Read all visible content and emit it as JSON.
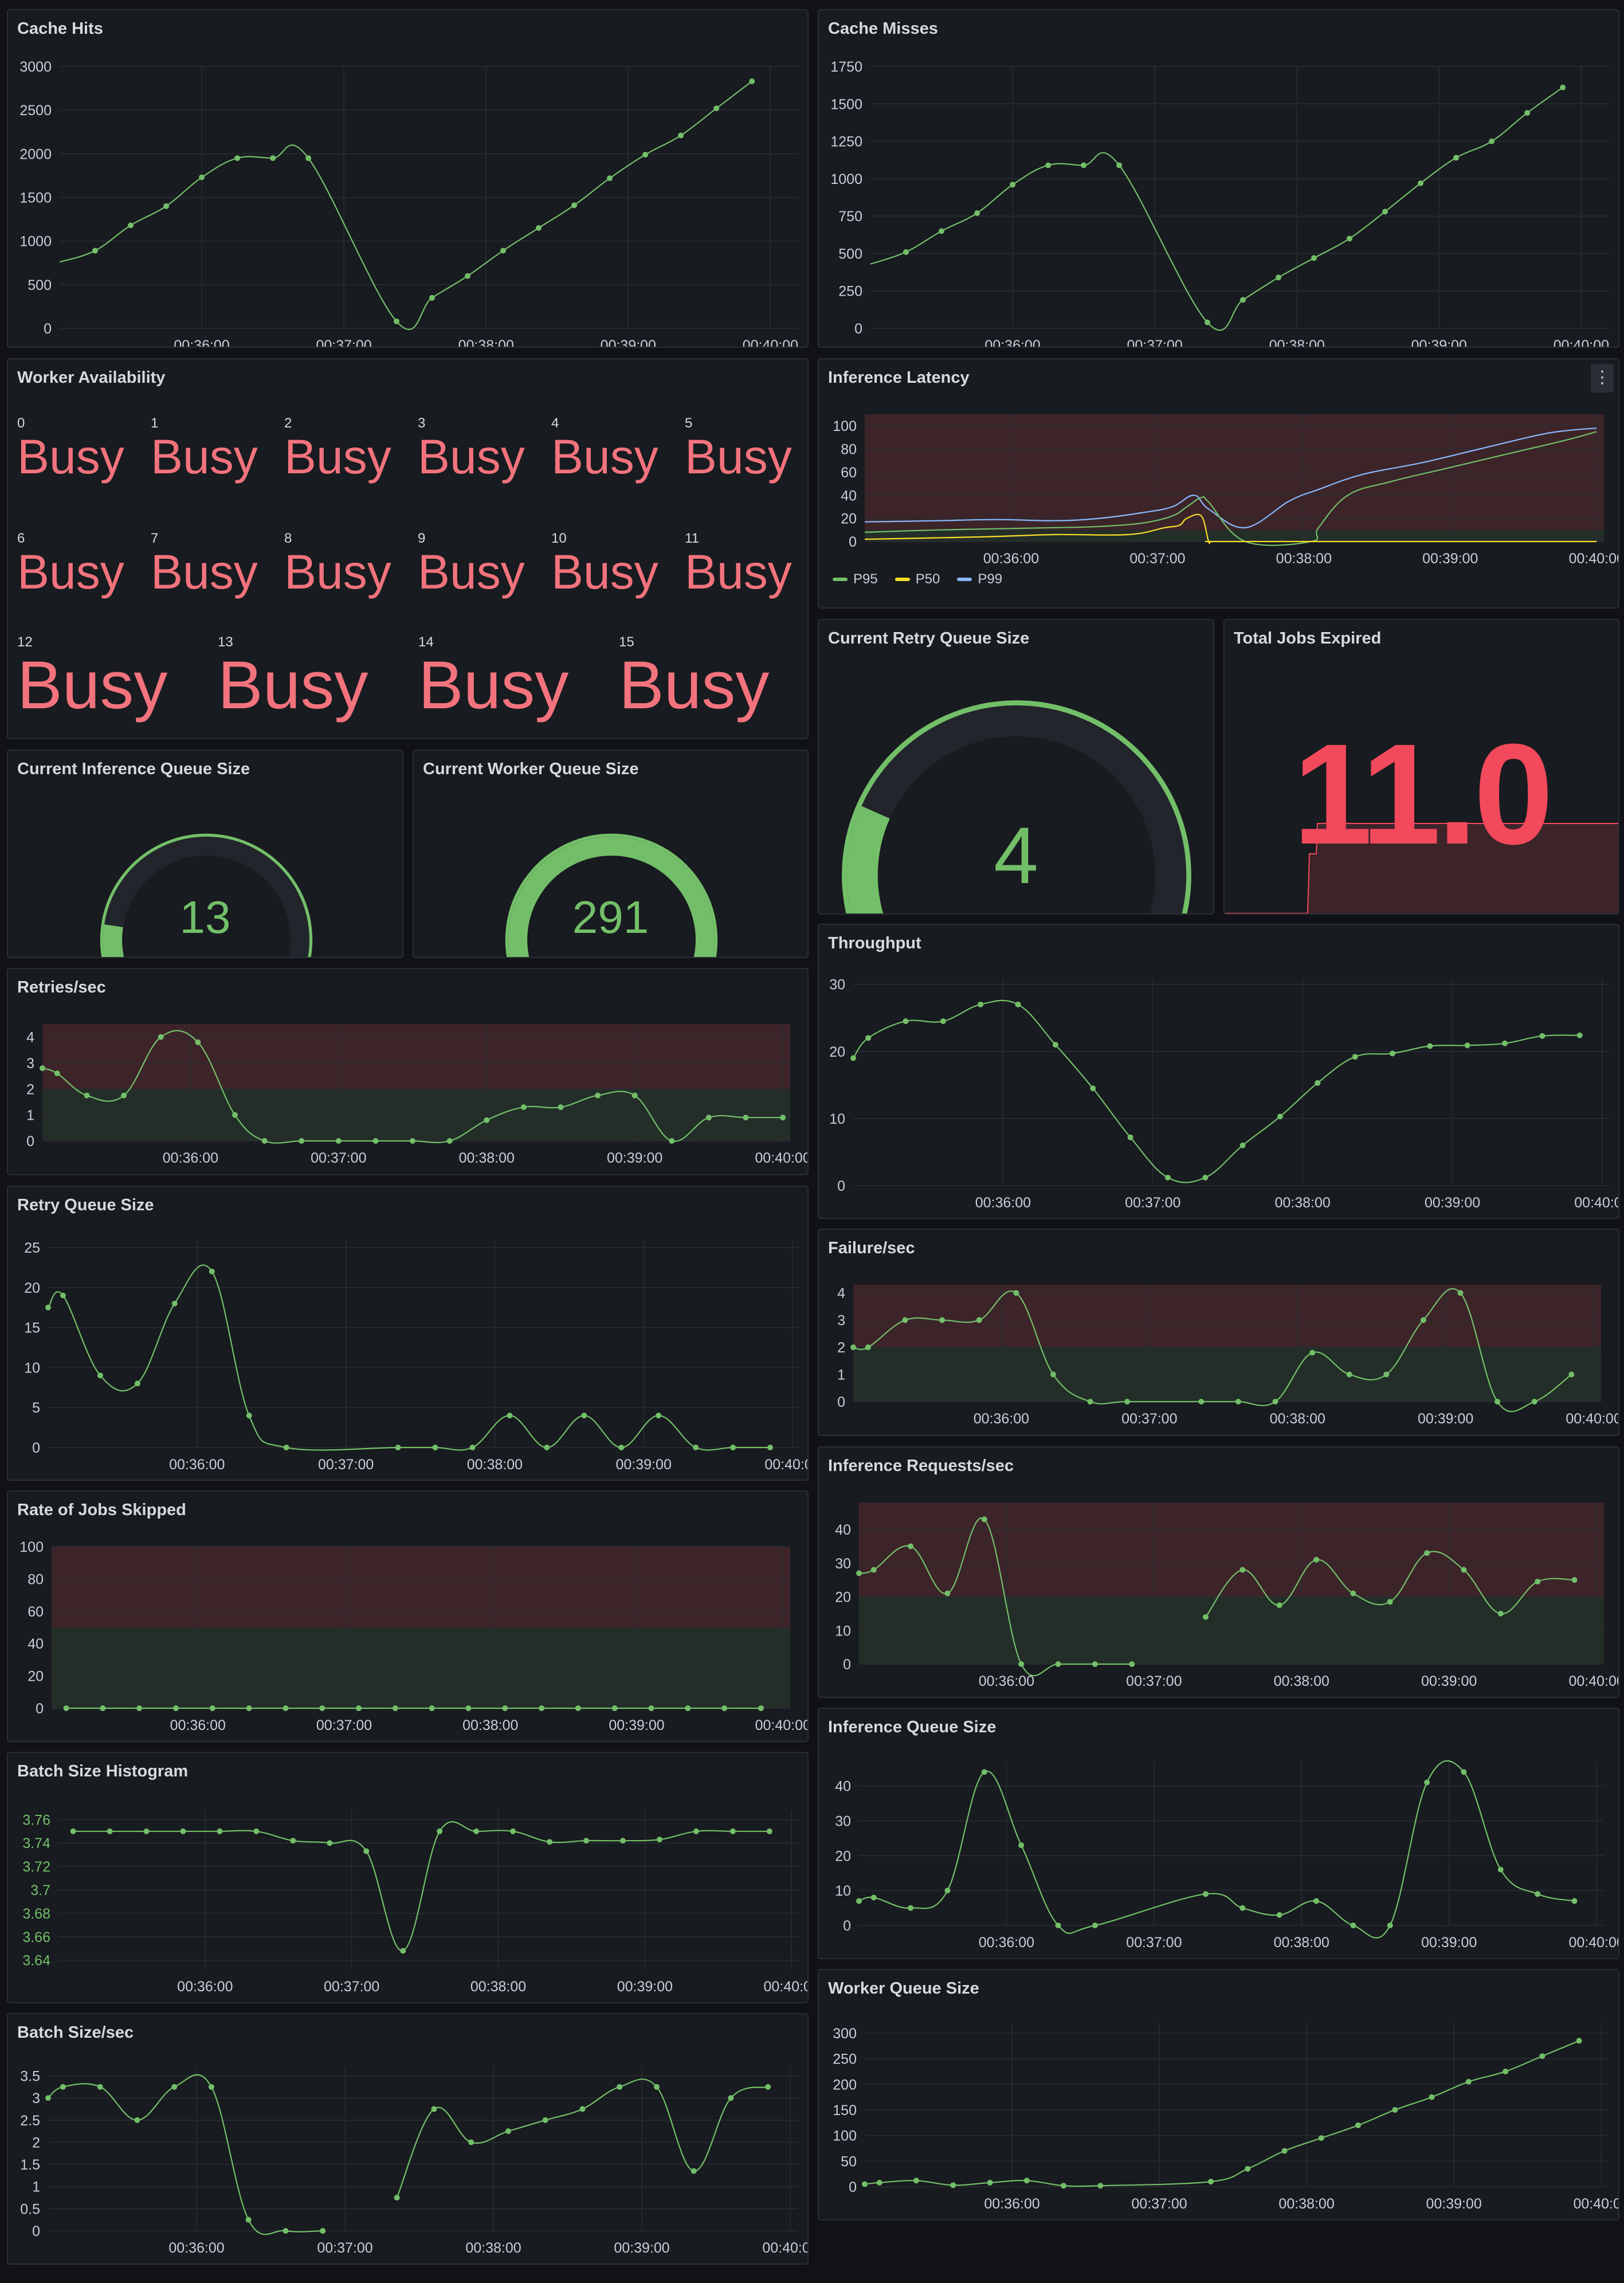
{
  "colors": {
    "green": "#73bf69",
    "red": "#f2495c",
    "busy": "#f2737d",
    "yellow": "#fade2a",
    "blue": "#8ab8ff",
    "purple": "#b7b1f5",
    "red_band": "#3d2429",
    "green_band": "#232e28",
    "track": "#22252b"
  },
  "x_ticks": [
    "00:36:00",
    "00:37:00",
    "00:38:00",
    "00:39:00",
    "00:40:00"
  ],
  "panels": {
    "cache_hits": {
      "title": "Cache Hits"
    },
    "cache_misses": {
      "title": "Cache Misses"
    },
    "worker_availability": {
      "title": "Worker Availability",
      "workers": [
        {
          "id": "0",
          "status": "Busy"
        },
        {
          "id": "1",
          "status": "Busy"
        },
        {
          "id": "2",
          "status": "Busy"
        },
        {
          "id": "3",
          "status": "Busy"
        },
        {
          "id": "4",
          "status": "Busy"
        },
        {
          "id": "5",
          "status": "Busy"
        },
        {
          "id": "6",
          "status": "Busy"
        },
        {
          "id": "7",
          "status": "Busy"
        },
        {
          "id": "8",
          "status": "Busy"
        },
        {
          "id": "9",
          "status": "Busy"
        },
        {
          "id": "10",
          "status": "Busy"
        },
        {
          "id": "11",
          "status": "Busy"
        },
        {
          "id": "12",
          "status": "Busy"
        },
        {
          "id": "13",
          "status": "Busy"
        },
        {
          "id": "14",
          "status": "Busy"
        },
        {
          "id": "15",
          "status": "Busy"
        }
      ]
    },
    "inference_latency": {
      "title": "Inference Latency",
      "menu_icon": "kebab-menu-icon",
      "legend": [
        "P95",
        "P50",
        "P99"
      ]
    },
    "inference_queue_gauge": {
      "title": "Current Inference Queue Size",
      "value": "13"
    },
    "worker_queue_gauge": {
      "title": "Current Worker Queue Size",
      "value": "291"
    },
    "retry_queue_gauge": {
      "title": "Current Retry Queue Size",
      "value": "4"
    },
    "total_jobs_expired": {
      "title": "Total Jobs Expired",
      "value": "11.0"
    },
    "retries_sec": {
      "title": "Retries/sec"
    },
    "throughput": {
      "title": "Throughput"
    },
    "retry_queue_size": {
      "title": "Retry Queue Size"
    },
    "failure_sec": {
      "title": "Failure/sec"
    },
    "rate_jobs_skipped": {
      "title": "Rate of Jobs Skipped"
    },
    "inference_requests_sec": {
      "title": "Inference Requests/sec"
    },
    "batch_size_histogram": {
      "title": "Batch Size Histogram"
    },
    "inference_queue_size": {
      "title": "Inference Queue Size"
    },
    "batch_size_sec": {
      "title": "Batch Size/sec"
    },
    "worker_queue_size": {
      "title": "Worker Queue Size"
    }
  },
  "chart_data": [
    {
      "id": "cache_hits",
      "type": "line",
      "title": "Cache Hits",
      "ylim": [
        0,
        3000
      ],
      "yticks": [
        "0",
        "500",
        "1000",
        "1500",
        "2000",
        "2500",
        "3000"
      ],
      "xlim": [
        0,
        5.2
      ],
      "x": [
        0.25,
        0.5,
        0.75,
        1.0,
        1.25,
        1.5,
        1.75,
        2.37,
        2.62,
        2.87,
        3.12,
        3.37,
        3.62,
        3.87,
        4.12,
        4.37,
        4.62,
        4.87
      ],
      "values": [
        890,
        1180,
        1400,
        1730,
        1950,
        1950,
        1950,
        80,
        350,
        600,
        890,
        1150,
        1410,
        1720,
        1990,
        2210,
        2520,
        2830
      ],
      "start": 760
    },
    {
      "id": "cache_misses",
      "type": "line",
      "title": "Cache Misses",
      "ylim": [
        0,
        1750
      ],
      "yticks": [
        "0",
        "250",
        "500",
        "750",
        "1000",
        "1250",
        "1500",
        "1750"
      ],
      "xlim": [
        0,
        5.2
      ],
      "x": [
        0.25,
        0.5,
        0.75,
        1.0,
        1.25,
        1.5,
        1.75,
        2.37,
        2.62,
        2.87,
        3.12,
        3.37,
        3.62,
        3.87,
        4.12,
        4.37,
        4.62,
        4.87
      ],
      "values": [
        510,
        650,
        770,
        960,
        1090,
        1090,
        1090,
        40,
        190,
        340,
        470,
        600,
        780,
        970,
        1140,
        1250,
        1440,
        1610
      ],
      "start": 430
    },
    {
      "id": "inference_latency",
      "type": "line",
      "title": "Inference Latency",
      "ylim": [
        0,
        110
      ],
      "yticks": [
        "0",
        "20",
        "40",
        "60",
        "80",
        "100"
      ],
      "xlim": [
        0,
        5.05
      ],
      "thresholds": [
        {
          "from": 0,
          "to": 10,
          "color": "green_band"
        },
        {
          "from": 10,
          "to": 110,
          "color": "red_band"
        }
      ],
      "series": [
        {
          "name": "P99",
          "color": "blue",
          "x": [
            0,
            0.5,
            0.9,
            1.3,
            1.6,
            1.9,
            2.1,
            2.25,
            2.35,
            2.6,
            2.9,
            3.1,
            3.4,
            3.8,
            4.2,
            4.6,
            4.8,
            5.0
          ],
          "values": [
            17,
            18,
            19,
            18,
            20,
            25,
            30,
            40,
            28,
            12,
            35,
            45,
            58,
            68,
            80,
            92,
            96,
            98
          ]
        },
        {
          "name": "P95",
          "color": "green",
          "x": [
            0,
            0.5,
            0.9,
            1.3,
            1.6,
            1.9,
            2.1,
            2.2,
            2.3,
            2.35,
            2.6,
            3.05,
            3.1,
            3.3,
            3.6,
            4.0,
            4.4,
            4.8,
            5.0
          ],
          "values": [
            8,
            10,
            11,
            12,
            13,
            16,
            22,
            30,
            38,
            34,
            0,
            0,
            12,
            40,
            52,
            64,
            76,
            88,
            95
          ]
        },
        {
          "name": "P50",
          "color": "yellow",
          "x": [
            0,
            0.8,
            1.3,
            1.8,
            2.05,
            2.15,
            2.2,
            2.3,
            2.35,
            2.38,
            2.6,
            5.0
          ],
          "values": [
            2,
            4,
            6,
            6,
            12,
            14,
            20,
            22,
            0,
            0,
            0,
            0
          ]
        }
      ]
    },
    {
      "id": "retries_sec",
      "type": "line",
      "title": "Retries/sec",
      "ylim": [
        0,
        4.5
      ],
      "yticks": [
        "0",
        "1",
        "2",
        "3",
        "4"
      ],
      "xlim": [
        0,
        5.05
      ],
      "thresholds": [
        {
          "from": 0,
          "to": 2,
          "color": "green_band"
        },
        {
          "from": 2,
          "to": 4.5,
          "color": "red_band"
        }
      ],
      "x": [
        0.0,
        0.1,
        0.3,
        0.55,
        0.8,
        1.05,
        1.3,
        1.5,
        1.75,
        2.0,
        2.25,
        2.5,
        2.75,
        3.0,
        3.25,
        3.5,
        3.75,
        4.0,
        4.25,
        4.5,
        4.75,
        5.0
      ],
      "values": [
        2.8,
        2.6,
        1.75,
        1.75,
        4.0,
        3.8,
        1.0,
        0,
        0,
        0,
        0,
        0,
        0,
        0.8,
        1.3,
        1.3,
        1.75,
        1.75,
        0,
        0.9,
        0.9,
        0.9
      ]
    },
    {
      "id": "throughput",
      "type": "line",
      "title": "Throughput",
      "ylim": [
        0,
        31
      ],
      "yticks": [
        "0",
        "10",
        "20",
        "30"
      ],
      "xlim": [
        0,
        5.05
      ],
      "x": [
        0.0,
        0.1,
        0.35,
        0.6,
        0.85,
        1.1,
        1.35,
        1.6,
        1.85,
        2.1,
        2.35,
        2.6,
        2.85,
        3.1,
        3.35,
        3.6,
        3.85,
        4.1,
        4.35,
        4.6,
        4.85
      ],
      "values": [
        19,
        22,
        24.5,
        24.5,
        27,
        27,
        21,
        14.5,
        7.2,
        1.2,
        1.2,
        6,
        10.3,
        15.3,
        19.2,
        19.7,
        20.8,
        20.9,
        21.2,
        22.3,
        22.4
      ]
    },
    {
      "id": "retry_queue_size",
      "type": "line",
      "title": "Retry Queue Size",
      "ylim": [
        0,
        26
      ],
      "yticks": [
        "0",
        "5",
        "10",
        "15",
        "20",
        "25"
      ],
      "xlim": [
        0,
        5.05
      ],
      "x": [
        0.0,
        0.1,
        0.35,
        0.6,
        0.85,
        1.1,
        1.35,
        1.6,
        2.35,
        2.6,
        2.85,
        3.1,
        3.35,
        3.6,
        3.85,
        4.1,
        4.35,
        4.6,
        4.85
      ],
      "values": [
        17.5,
        19,
        9,
        8,
        18,
        22,
        4,
        0,
        0,
        0,
        0,
        4,
        0,
        4,
        0,
        4,
        0,
        0,
        0
      ]
    },
    {
      "id": "failure_sec",
      "type": "line",
      "title": "Failure/sec",
      "ylim": [
        0,
        4.3
      ],
      "yticks": [
        "0",
        "1",
        "2",
        "3",
        "4"
      ],
      "xlim": [
        0,
        5.05
      ],
      "thresholds": [
        {
          "from": 0,
          "to": 2,
          "color": "green_band"
        },
        {
          "from": 2,
          "to": 4.3,
          "color": "red_band"
        }
      ],
      "x": [
        0.0,
        0.1,
        0.35,
        0.6,
        0.85,
        1.1,
        1.35,
        1.6,
        1.85,
        2.35,
        2.6,
        2.85,
        3.1,
        3.35,
        3.6,
        3.85,
        4.1,
        4.35,
        4.6,
        4.85
      ],
      "values": [
        2,
        2,
        3,
        3,
        3,
        4,
        1,
        0,
        0,
        0,
        0,
        0,
        1.8,
        1,
        1,
        3,
        4,
        0,
        0,
        1
      ]
    },
    {
      "id": "rate_jobs_skipped",
      "type": "line",
      "title": "Rate of Jobs Skipped",
      "ylim": [
        0,
        100
      ],
      "yticks": [
        "0",
        "20",
        "40",
        "60",
        "80",
        "100"
      ],
      "xlim": [
        0,
        5.05
      ],
      "thresholds": [
        {
          "from": 0,
          "to": 50,
          "color": "green_band"
        },
        {
          "from": 50,
          "to": 100,
          "color": "red_band"
        }
      ],
      "x": [
        0.1,
        0.35,
        0.6,
        0.85,
        1.1,
        1.35,
        1.6,
        1.85,
        2.1,
        2.35,
        2.6,
        2.85,
        3.1,
        3.35,
        3.6,
        3.85,
        4.1,
        4.35,
        4.6,
        4.85
      ],
      "values": [
        0,
        0,
        0,
        0,
        0,
        0,
        0,
        0,
        0,
        0,
        0,
        0,
        0,
        0,
        0,
        0,
        0,
        0,
        0,
        0
      ]
    },
    {
      "id": "inference_requests_sec",
      "type": "line",
      "title": "Inference Requests/sec",
      "ylim": [
        0,
        48
      ],
      "yticks": [
        "0",
        "10",
        "20",
        "30",
        "40"
      ],
      "xlim": [
        0,
        5.05
      ],
      "thresholds": [
        {
          "from": 0,
          "to": 20,
          "color": "green_band"
        },
        {
          "from": 20,
          "to": 48,
          "color": "red_band"
        }
      ],
      "segments": [
        {
          "x": [
            0.0,
            0.1,
            0.35,
            0.6,
            0.85,
            1.1,
            1.35,
            1.6,
            1.85
          ],
          "values": [
            27,
            28,
            35,
            21,
            43,
            0,
            0,
            0,
            0
          ]
        },
        {
          "x": [
            2.35,
            2.6,
            2.85,
            3.1,
            3.35,
            3.6,
            3.85,
            4.1,
            4.35,
            4.6,
            4.85
          ],
          "values": [
            14,
            28,
            17.5,
            31,
            21,
            18.5,
            33,
            28,
            15,
            24.5,
            25
          ]
        }
      ]
    },
    {
      "id": "batch_size_histogram",
      "type": "line",
      "title": "Batch Size Histogram",
      "ylim": [
        3.632,
        3.768
      ],
      "yticks": [
        "3.64",
        "3.66",
        "3.68",
        "3.7",
        "3.72",
        "3.74",
        "3.76"
      ],
      "xlim": [
        0,
        5.05
      ],
      "x": [
        0.1,
        0.35,
        0.6,
        0.85,
        1.1,
        1.35,
        1.6,
        1.85,
        2.1,
        2.35,
        2.6,
        2.85,
        3.1,
        3.35,
        3.6,
        3.85,
        4.1,
        4.35,
        4.6,
        4.85
      ],
      "values": [
        3.75,
        3.75,
        3.75,
        3.75,
        3.75,
        3.75,
        3.742,
        3.74,
        3.733,
        3.648,
        3.75,
        3.75,
        3.75,
        3.741,
        3.742,
        3.742,
        3.743,
        3.75,
        3.75,
        3.75
      ]
    },
    {
      "id": "inference_queue_size",
      "type": "line",
      "title": "Inference Queue Size",
      "ylim": [
        0,
        47
      ],
      "yticks": [
        "0",
        "10",
        "20",
        "30",
        "40"
      ],
      "xlim": [
        0,
        5.05
      ],
      "x": [
        0.0,
        0.1,
        0.35,
        0.6,
        0.85,
        1.1,
        1.35,
        1.6,
        2.35,
        2.6,
        2.85,
        3.1,
        3.35,
        3.6,
        3.85,
        4.1,
        4.35,
        4.6,
        4.85
      ],
      "values": [
        7,
        8,
        5,
        10,
        44,
        23,
        0,
        0,
        9,
        5,
        3,
        7,
        0,
        0,
        41,
        44,
        16,
        9,
        7
      ]
    },
    {
      "id": "batch_size_sec",
      "type": "line",
      "title": "Batch Size/sec",
      "ylim": [
        0,
        3.7
      ],
      "yticks": [
        "0",
        "0.5",
        "1",
        "1.5",
        "2",
        "2.5",
        "3",
        "3.5"
      ],
      "xlim": [
        0,
        5.05
      ],
      "segments": [
        {
          "x": [
            0.0,
            0.1,
            0.35,
            0.6,
            0.85,
            1.1,
            1.35,
            1.6,
            1.85
          ],
          "values": [
            3.0,
            3.25,
            3.25,
            2.5,
            3.25,
            3.25,
            0.25,
            0,
            0
          ]
        },
        {
          "x": [
            2.35,
            2.6,
            2.85,
            3.1,
            3.35,
            3.6,
            3.85,
            4.1,
            4.35,
            4.6,
            4.85
          ],
          "values": [
            0.75,
            2.75,
            2.0,
            2.25,
            2.5,
            2.75,
            3.25,
            3.25,
            1.35,
            3.0,
            3.25
          ]
        }
      ]
    },
    {
      "id": "worker_queue_size",
      "type": "line",
      "title": "Worker Queue Size",
      "ylim": [
        0,
        320
      ],
      "yticks": [
        "0",
        "50",
        "100",
        "150",
        "200",
        "250",
        "300"
      ],
      "xlim": [
        0,
        5.05
      ],
      "x": [
        0.0,
        0.1,
        0.35,
        0.6,
        0.85,
        1.1,
        1.35,
        1.6,
        2.35,
        2.6,
        2.85,
        3.1,
        3.35,
        3.6,
        3.85,
        4.1,
        4.35,
        4.6,
        4.85
      ],
      "values": [
        5,
        8,
        12,
        3,
        8,
        12,
        2,
        2,
        10,
        35,
        70,
        95,
        120,
        150,
        175,
        205,
        225,
        255,
        285
      ]
    }
  ],
  "gauges": [
    {
      "id": "inference_queue_gauge",
      "value": 13,
      "max": 100
    },
    {
      "id": "worker_queue_gauge",
      "value": 291,
      "max": 300
    },
    {
      "id": "retry_queue_gauge",
      "value": 4,
      "max": 20
    }
  ]
}
